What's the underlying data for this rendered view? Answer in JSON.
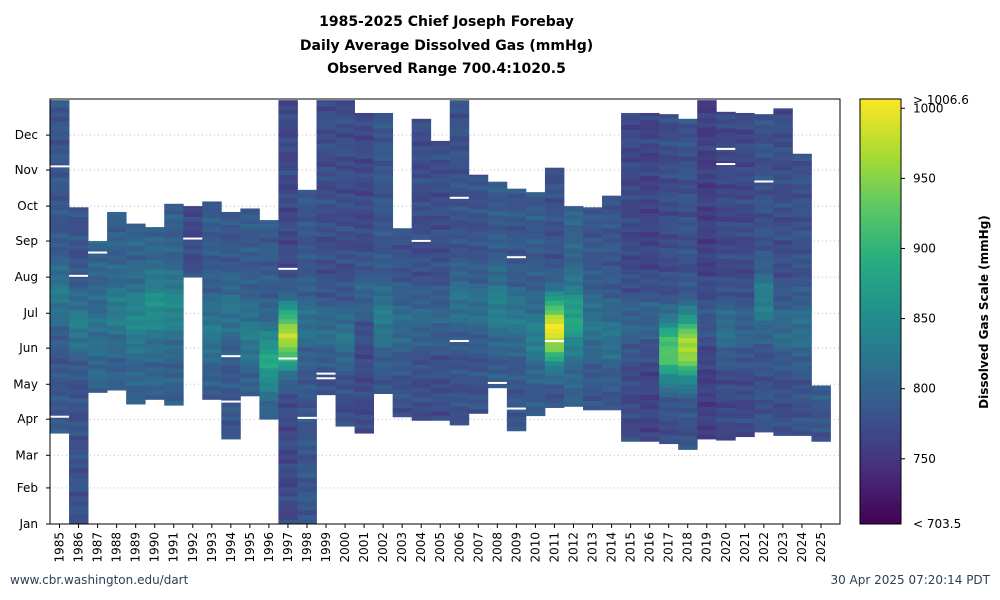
{
  "header": {
    "title_line1": "1985-2025 Chief Joseph Forebay",
    "title_line2": "Daily Average Dissolved Gas (mmHg)",
    "title_line3": "Observed Range 700.4:1020.5"
  },
  "footer": {
    "left": "www.cbr.washington.edu/dart",
    "right": "30 Apr 2025 07:20:14 PDT"
  },
  "colorbar": {
    "label": "Dissolved Gas Scale (mmHg)",
    "max_label": "> 1006.6",
    "min_label": "< 703.5",
    "ticks": [
      "1000",
      "950",
      "900",
      "850",
      "800",
      "750"
    ],
    "tick_values": [
      1000,
      950,
      900,
      850,
      800,
      750
    ],
    "range": [
      703.5,
      1006.6
    ],
    "colors": [
      "#440154",
      "#472d7b",
      "#3b528b",
      "#2c728e",
      "#21918c",
      "#28ae80",
      "#5ec962",
      "#addc30",
      "#fde725"
    ]
  },
  "chart_data": {
    "type": "heatmap",
    "title": "1985-2025 Chief Joseph Forebay Daily Average Dissolved Gas (mmHg)",
    "xlabel": "",
    "ylabel": "",
    "x_tick_labels": [
      "1985",
      "1986",
      "1987",
      "1988",
      "1989",
      "1990",
      "1991",
      "1992",
      "1993",
      "1994",
      "1995",
      "1996",
      "1997",
      "1998",
      "1999",
      "2000",
      "2001",
      "2002",
      "2003",
      "2004",
      "2005",
      "2006",
      "2007",
      "2008",
      "2009",
      "2010",
      "2011",
      "2012",
      "2013",
      "2014",
      "2015",
      "2016",
      "2017",
      "2018",
      "2019",
      "2020",
      "2021",
      "2022",
      "2023",
      "2024",
      "2025"
    ],
    "y_tick_labels": [
      "Jan",
      "Feb",
      "Mar",
      "Apr",
      "May",
      "Jun",
      "Jul",
      "Aug",
      "Sep",
      "Oct",
      "Nov",
      "Dec"
    ],
    "grid": true,
    "value_units": "mmHg",
    "columns": [
      {
        "year": "1985",
        "start": "2025-03-20",
        "end": "2025-12-31",
        "base": 785,
        "peak": "2025-07-15",
        "amp": 40,
        "gaps": [
          "2025-04-03",
          "2025-11-04"
        ]
      },
      {
        "year": "1986",
        "start": "2025-01-01",
        "end": "2025-09-30",
        "base": 780,
        "peak": "2025-06-20",
        "amp": 50,
        "gaps": [
          "2025-08-02"
        ]
      },
      {
        "year": "1987",
        "start": "2025-04-24",
        "end": "2025-09-01",
        "base": 800,
        "peak": "2025-06-15",
        "amp": 15,
        "gaps": [
          "2025-08-22"
        ]
      },
      {
        "year": "1988",
        "start": "2025-04-26",
        "end": "2025-09-26",
        "base": 795,
        "peak": "2025-07-01",
        "amp": 35,
        "gaps": []
      },
      {
        "year": "1989",
        "start": "2025-04-14",
        "end": "2025-09-16",
        "base": 800,
        "peak": "2025-06-25",
        "amp": 45,
        "gaps": []
      },
      {
        "year": "1990",
        "start": "2025-04-18",
        "end": "2025-09-13",
        "base": 800,
        "peak": "2025-07-05",
        "amp": 55,
        "gaps": []
      },
      {
        "year": "1991",
        "start": "2025-04-13",
        "end": "2025-10-03",
        "base": 795,
        "peak": "2025-07-05",
        "amp": 50,
        "gaps": []
      },
      {
        "year": "1992",
        "start": "2025-08-01",
        "end": "2025-10-01",
        "base": 765,
        "peak": "2025-08-10",
        "amp": 10,
        "gaps": [
          "2025-09-03"
        ]
      },
      {
        "year": "1993",
        "start": "2025-04-18",
        "end": "2025-10-05",
        "base": 790,
        "peak": "2025-06-15",
        "amp": 35,
        "gaps": []
      },
      {
        "year": "1994",
        "start": "2025-03-15",
        "end": "2025-09-26",
        "base": 785,
        "peak": "2025-07-01",
        "amp": 35,
        "gaps": [
          "2025-04-16",
          "2025-05-25"
        ]
      },
      {
        "year": "1995",
        "start": "2025-04-21",
        "end": "2025-09-29",
        "base": 790,
        "peak": "2025-06-10",
        "amp": 40,
        "gaps": []
      },
      {
        "year": "1996",
        "start": "2025-04-01",
        "end": "2025-09-19",
        "base": 790,
        "peak": "2025-05-20",
        "amp": 90,
        "gaps": []
      },
      {
        "year": "1997",
        "start": "2025-01-01",
        "end": "2025-12-31",
        "base": 770,
        "peak": "2025-06-09",
        "amp": 200,
        "gaps": [
          "2025-05-23",
          "2025-08-08"
        ]
      },
      {
        "year": "1998",
        "start": "2025-01-01",
        "end": "2025-10-15",
        "base": 785,
        "peak": "2025-06-20",
        "amp": 30,
        "gaps": [
          "2025-04-02"
        ]
      },
      {
        "year": "1999",
        "start": "2025-04-22",
        "end": "2025-12-31",
        "base": 775,
        "peak": "2025-06-15",
        "amp": 35,
        "gaps": [
          "2025-05-10",
          "2025-05-06"
        ]
      },
      {
        "year": "2000",
        "start": "2025-03-26",
        "end": "2025-12-31",
        "base": 775,
        "peak": "2025-06-10",
        "amp": 45,
        "gaps": []
      },
      {
        "year": "2001",
        "start": "2025-03-20",
        "end": "2025-12-20",
        "base": 770,
        "peak": "2025-07-15",
        "amp": 30,
        "gaps": []
      },
      {
        "year": "2002",
        "start": "2025-04-23",
        "end": "2025-12-20",
        "base": 785,
        "peak": "2025-06-25",
        "amp": 45,
        "gaps": []
      },
      {
        "year": "2003",
        "start": "2025-04-03",
        "end": "2025-09-12",
        "base": 780,
        "peak": "2025-06-20",
        "amp": 30,
        "gaps": []
      },
      {
        "year": "2004",
        "start": "2025-03-31",
        "end": "2025-12-15",
        "base": 775,
        "peak": "2025-06-25",
        "amp": 30,
        "gaps": [
          "2025-09-01"
        ]
      },
      {
        "year": "2005",
        "start": "2025-03-31",
        "end": "2025-11-26",
        "base": 775,
        "peak": "2025-06-25",
        "amp": 25,
        "gaps": []
      },
      {
        "year": "2006",
        "start": "2025-03-27",
        "end": "2025-12-31",
        "base": 780,
        "peak": "2025-07-10",
        "amp": 40,
        "gaps": [
          "2025-06-07",
          "2025-10-08"
        ]
      },
      {
        "year": "2007",
        "start": "2025-04-06",
        "end": "2025-10-28",
        "base": 780,
        "peak": "2025-07-05",
        "amp": 35,
        "gaps": []
      },
      {
        "year": "2008",
        "start": "2025-04-28",
        "end": "2025-10-22",
        "base": 790,
        "peak": "2025-07-05",
        "amp": 45,
        "gaps": [
          "2025-05-02"
        ]
      },
      {
        "year": "2009",
        "start": "2025-03-22",
        "end": "2025-10-16",
        "base": 785,
        "peak": "2025-06-25",
        "amp": 40,
        "gaps": [
          "2025-04-10",
          "2025-08-18"
        ]
      },
      {
        "year": "2010",
        "start": "2025-04-04",
        "end": "2025-10-13",
        "base": 790,
        "peak": "2025-06-10",
        "amp": 45,
        "gaps": []
      },
      {
        "year": "2011",
        "start": "2025-04-11",
        "end": "2025-11-03",
        "base": 780,
        "peak": "2025-06-15",
        "amp": 220,
        "gaps": [
          "2025-06-07"
        ]
      },
      {
        "year": "2012",
        "start": "2025-04-12",
        "end": "2025-10-01",
        "base": 800,
        "peak": "2025-06-25",
        "amp": 80,
        "gaps": []
      },
      {
        "year": "2013",
        "start": "2025-04-09",
        "end": "2025-09-30",
        "base": 785,
        "peak": "2025-06-20",
        "amp": 35,
        "gaps": []
      },
      {
        "year": "2014",
        "start": "2025-04-09",
        "end": "2025-10-10",
        "base": 785,
        "peak": "2025-06-10",
        "amp": 35,
        "gaps": []
      },
      {
        "year": "2015",
        "start": "2025-03-13",
        "end": "2025-12-20",
        "base": 770,
        "peak": "2025-06-20",
        "amp": 30,
        "gaps": []
      },
      {
        "year": "2016",
        "start": "2025-03-13",
        "end": "2025-12-20",
        "base": 765,
        "peak": "2025-06-25",
        "amp": 35,
        "gaps": []
      },
      {
        "year": "2017",
        "start": "2025-03-11",
        "end": "2025-12-19",
        "base": 775,
        "peak": "2025-05-28",
        "amp": 150,
        "gaps": []
      },
      {
        "year": "2018",
        "start": "2025-03-06",
        "end": "2025-12-15",
        "base": 780,
        "peak": "2025-05-31",
        "amp": 190,
        "gaps": []
      },
      {
        "year": "2019",
        "start": "2025-03-15",
        "end": "2025-12-31",
        "base": 760,
        "peak": "2025-06-25",
        "amp": 25,
        "gaps": []
      },
      {
        "year": "2020",
        "start": "2025-03-14",
        "end": "2025-12-21",
        "base": 770,
        "peak": "2025-06-15",
        "amp": 45,
        "gaps": [
          "2025-11-19",
          "2025-11-06"
        ]
      },
      {
        "year": "2021",
        "start": "2025-03-17",
        "end": "2025-12-20",
        "base": 770,
        "peak": "2025-06-15",
        "amp": 30,
        "gaps": []
      },
      {
        "year": "2022",
        "start": "2025-03-21",
        "end": "2025-12-19",
        "base": 780,
        "peak": "2025-07-10",
        "amp": 55,
        "gaps": [
          "2025-10-22"
        ]
      },
      {
        "year": "2023",
        "start": "2025-03-18",
        "end": "2025-12-24",
        "base": 775,
        "peak": "2025-06-15",
        "amp": 35,
        "gaps": []
      },
      {
        "year": "2024",
        "start": "2025-03-18",
        "end": "2025-11-15",
        "base": 780,
        "peak": "2025-06-15",
        "amp": 35,
        "gaps": []
      },
      {
        "year": "2025",
        "start": "2025-03-13",
        "end": "2025-04-30",
        "base": 780,
        "peak": "2025-04-25",
        "amp": 10,
        "gaps": []
      }
    ]
  }
}
